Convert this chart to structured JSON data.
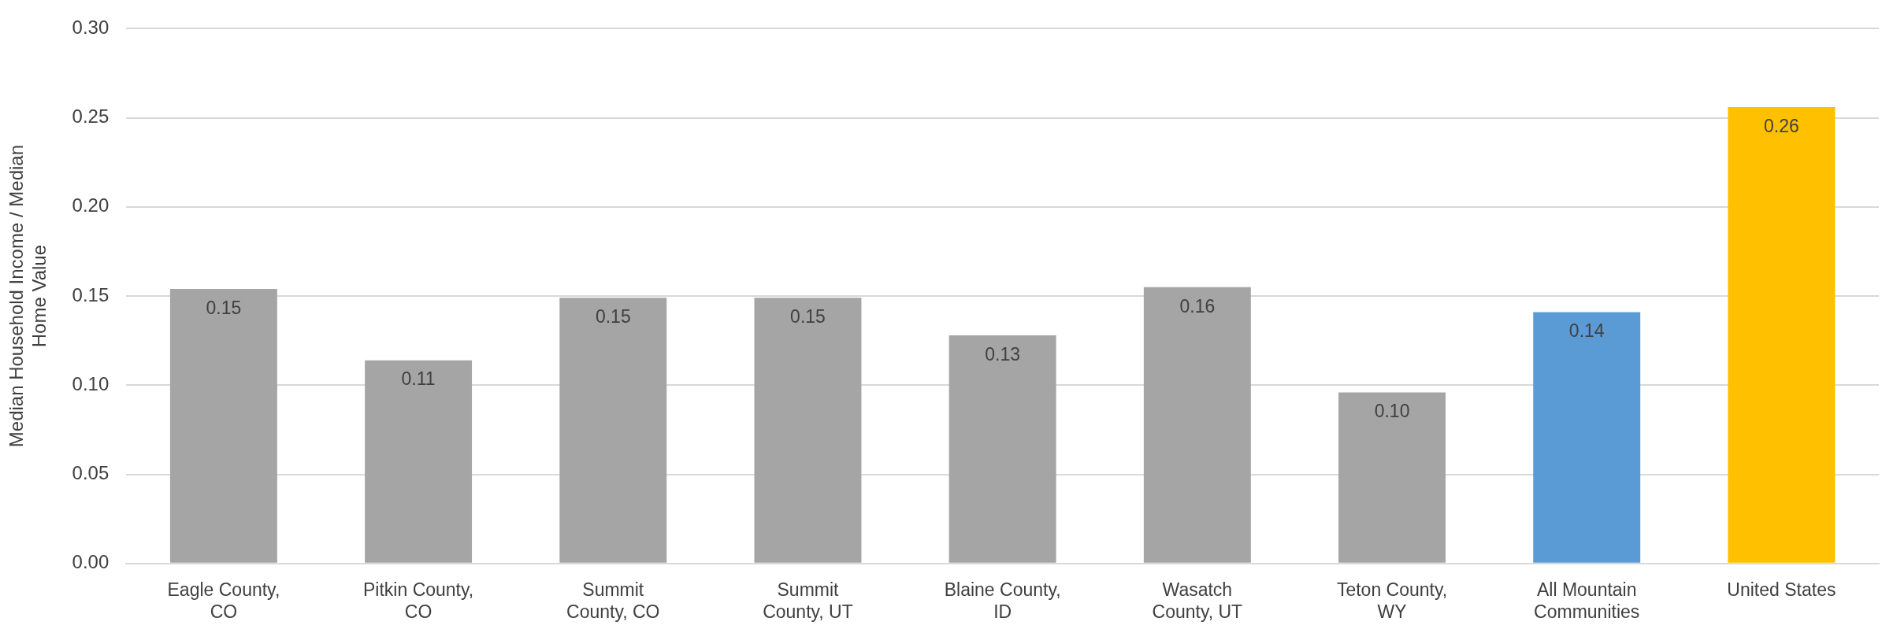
{
  "chart_data": {
    "type": "bar",
    "ylabel": "Median Household Income / Median Home Value",
    "categories": [
      "Eagle County, CO",
      "Pitkin County, CO",
      "Summit County, CO",
      "Summit County, UT",
      "Blaine County, ID",
      "Wasatch County, UT",
      "Teton County, WY",
      "All Mountain Communities",
      "United States"
    ],
    "values": [
      0.154,
      0.114,
      0.149,
      0.149,
      0.128,
      0.155,
      0.096,
      0.141,
      0.256
    ],
    "colors": [
      "#a5a5a5",
      "#a5a5a5",
      "#a5a5a5",
      "#a5a5a5",
      "#a5a5a5",
      "#a5a5a5",
      "#a5a5a5",
      "#5b9bd5",
      "#ffc000"
    ],
    "value_labels": [
      "0.15",
      "0.11",
      "0.15",
      "0.15",
      "0.13",
      "0.16",
      "0.10",
      "0.14",
      "0.26"
    ],
    "ylim": [
      0,
      0.3
    ],
    "yticks": [
      {
        "value": 0,
        "label": "0.00"
      },
      {
        "value": 0.05,
        "label": "0.05"
      },
      {
        "value": 0.1,
        "label": "0.10"
      },
      {
        "value": 0.15,
        "label": "0.15"
      },
      {
        "value": 0.2,
        "label": "0.20"
      },
      {
        "value": 0.25,
        "label": "0.25"
      },
      {
        "value": 0.3,
        "label": "0.30"
      }
    ],
    "grid": "y",
    "legend": false
  }
}
